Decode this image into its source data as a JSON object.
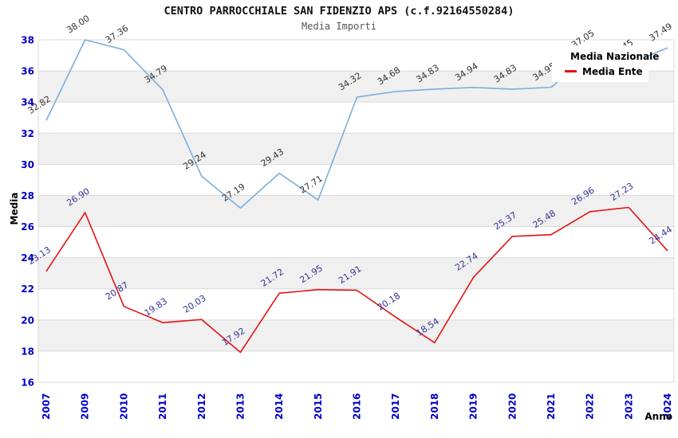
{
  "window": {
    "title": "Media Importi chart"
  },
  "chart_data": {
    "type": "line",
    "title": "CENTRO PARROCCHIALE SAN FIDENZIO APS (c.f.92164550284)",
    "subtitle": "Media Importi",
    "xlabel": "Anno",
    "ylabel": "Media",
    "ylim": [
      16,
      38
    ],
    "ytick_step": 2,
    "grid": true,
    "alternating_bands": true,
    "legend_position": "top-right",
    "categories": [
      "2007",
      "2009",
      "2010",
      "2011",
      "2012",
      "2013",
      "2014",
      "2015",
      "2016",
      "2017",
      "2018",
      "2019",
      "2020",
      "2021",
      "2022",
      "2023",
      "2024"
    ],
    "series": [
      {
        "name": "Media Nazionale",
        "color": "#7aaede",
        "label_color": "#333333",
        "values": [
          32.82,
          38.0,
          37.36,
          34.79,
          29.24,
          27.19,
          29.43,
          27.71,
          34.32,
          34.68,
          34.83,
          34.94,
          34.83,
          34.95,
          37.05,
          36.45,
          37.49
        ]
      },
      {
        "name": "Media Ente",
        "color": "#e41212",
        "label_color": "#333399",
        "values": [
          23.13,
          26.9,
          20.87,
          19.83,
          20.03,
          17.92,
          21.72,
          21.95,
          21.91,
          20.18,
          18.54,
          22.74,
          25.37,
          25.48,
          26.96,
          27.23,
          24.44
        ]
      }
    ],
    "colors": {
      "tick_label": "#0000cd",
      "grid_line": "#d9d9d9",
      "band_fill": "#f0f0f0",
      "axis_title": "#000000"
    }
  }
}
